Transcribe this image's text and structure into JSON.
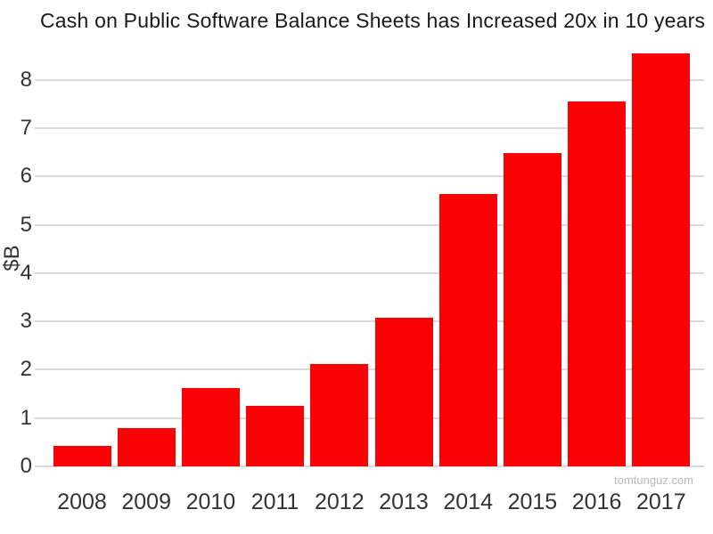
{
  "title": "Cash on Public Software Balance Sheets has Increased 20x in 10 years",
  "watermark": "tomtunguz.com",
  "chart_data": {
    "type": "bar",
    "title": "Cash on Public Software Balance Sheets has Increased 20x in 10 years",
    "categories": [
      "2008",
      "2009",
      "2010",
      "2011",
      "2012",
      "2013",
      "2014",
      "2015",
      "2016",
      "2017"
    ],
    "values": [
      0.43,
      0.8,
      1.62,
      1.25,
      2.12,
      3.08,
      5.64,
      6.48,
      7.55,
      8.56
    ],
    "xlabel": "",
    "ylabel": "$B",
    "ylim": [
      0,
      8.7
    ],
    "yticks": [
      0,
      1,
      2,
      3,
      4,
      5,
      6,
      7,
      8
    ],
    "grid": true,
    "legend": "none",
    "bar_color": "#fb0207",
    "gridline_color": "#d9d9d9",
    "tick_text_color": "#333333",
    "title_color": "#1a1a1a",
    "watermark_color": "#b8b8b8"
  }
}
